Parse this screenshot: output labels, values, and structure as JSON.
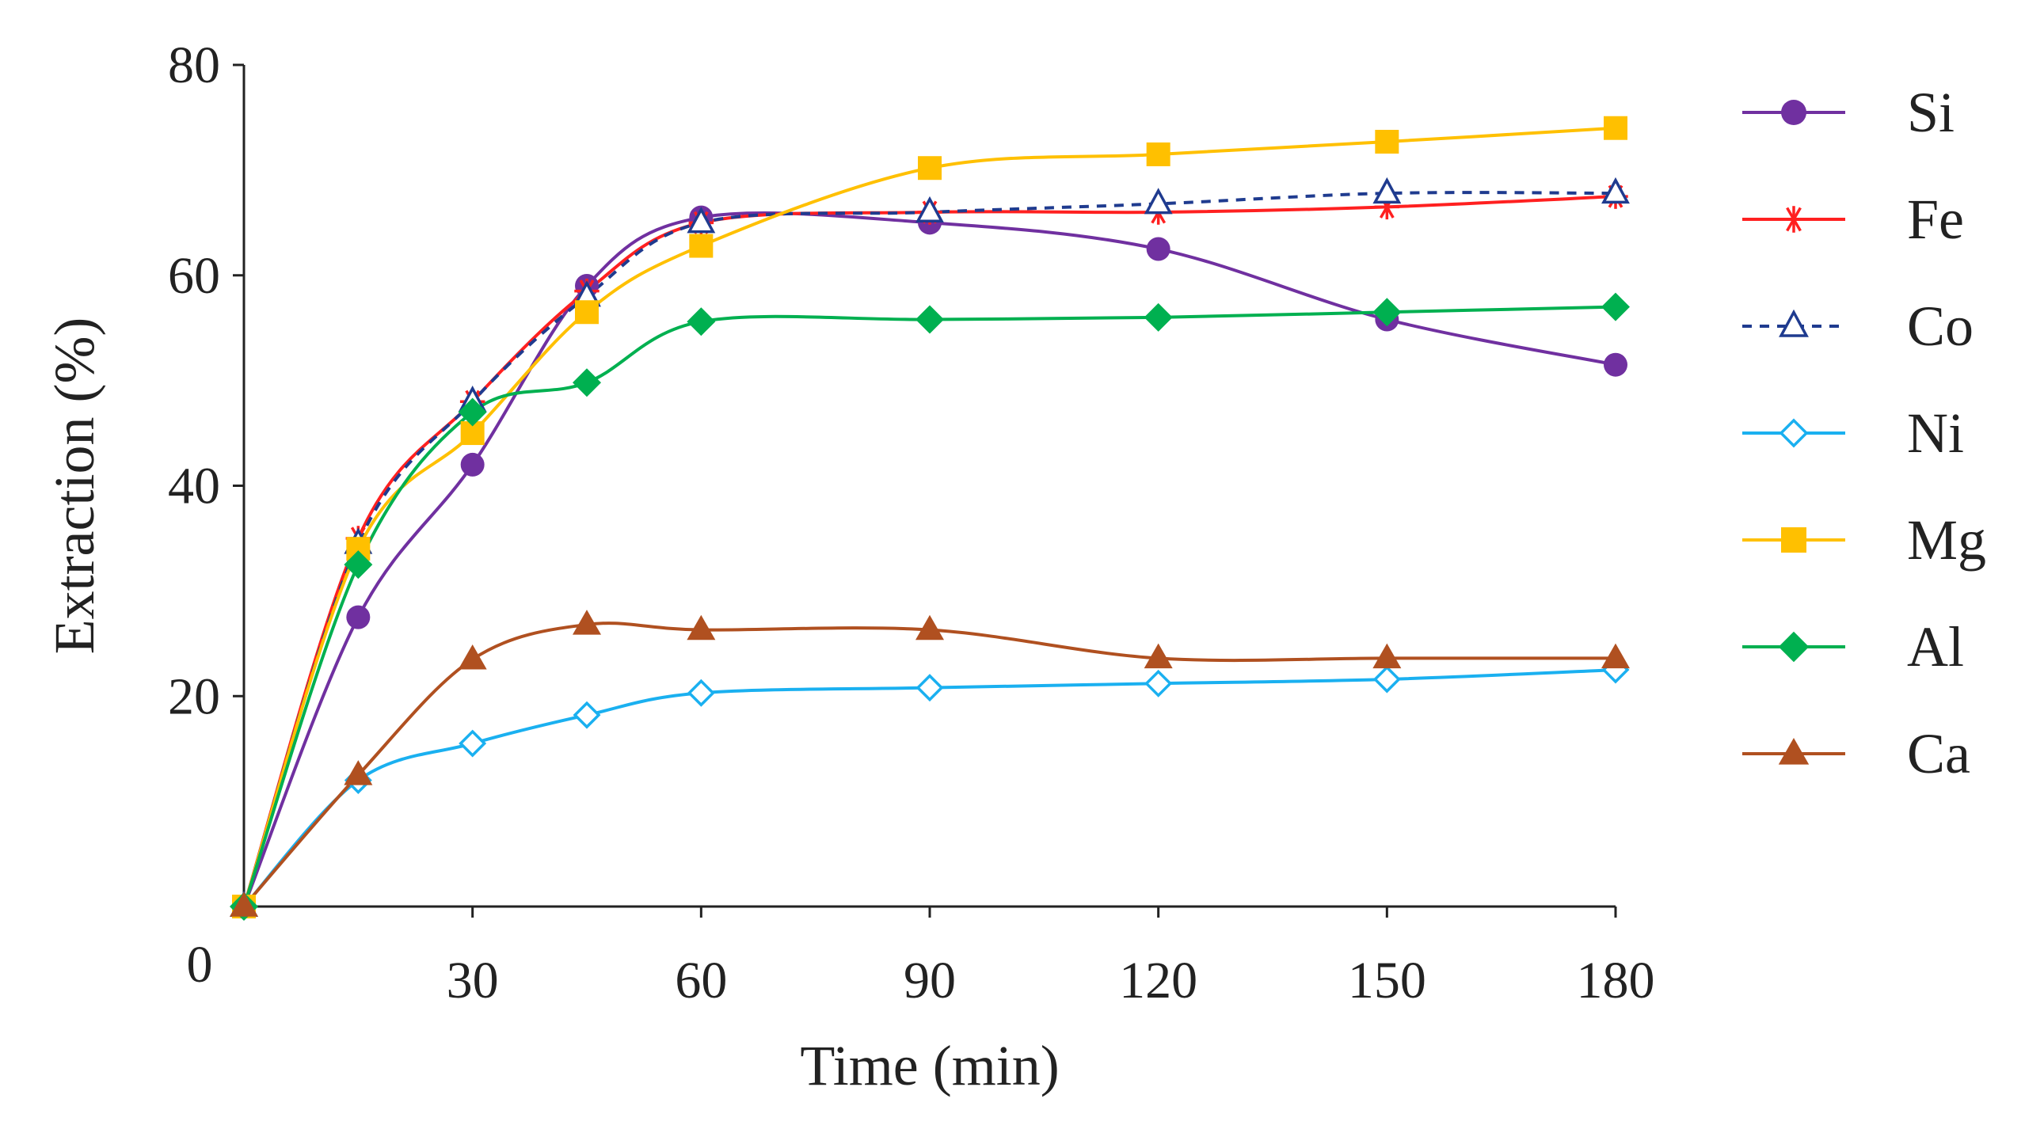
{
  "chart_data": {
    "type": "line",
    "title": "",
    "xlabel": "Time (min)",
    "ylabel": "Extraction (%)",
    "xlim": [
      0,
      180
    ],
    "ylim": [
      0,
      80
    ],
    "xticks": [
      30,
      60,
      90,
      120,
      150,
      180
    ],
    "yticks": [
      20,
      40,
      60,
      80
    ],
    "origin_label": "0",
    "legend_position": "right",
    "grid": false,
    "x": [
      0,
      15,
      30,
      45,
      60,
      90,
      120,
      150,
      180
    ],
    "series": [
      {
        "name": "Si",
        "color": "#7030a0",
        "marker": "circle",
        "dashed": false,
        "values": [
          0,
          27.5,
          42,
          59,
          65.5,
          65,
          62.5,
          55.8,
          51.5
        ]
      },
      {
        "name": "Fe",
        "color": "#ff2020",
        "marker": "star",
        "dashed": false,
        "values": [
          0,
          35,
          48,
          58.5,
          65,
          66,
          66,
          66.5,
          67.5
        ]
      },
      {
        "name": "Co",
        "color": "#1f3b8f",
        "marker": "triangle-open",
        "dashed": true,
        "values": [
          0,
          34.5,
          48,
          58,
          65,
          66,
          66.8,
          67.8,
          67.8
        ]
      },
      {
        "name": "Ni",
        "color": "#1ab0f0",
        "marker": "diamond-open",
        "dashed": false,
        "values": [
          0,
          12,
          15.5,
          18.2,
          20.3,
          20.8,
          21.2,
          21.6,
          22.5
        ]
      },
      {
        "name": "Mg",
        "color": "#ffc000",
        "marker": "square",
        "dashed": false,
        "values": [
          0,
          34,
          45,
          56.5,
          62.8,
          70.2,
          71.5,
          72.7,
          74
        ]
      },
      {
        "name": "Al",
        "color": "#00b050",
        "marker": "diamond",
        "dashed": false,
        "values": [
          0,
          32.5,
          47,
          49.8,
          55.6,
          55.8,
          56,
          56.5,
          57
        ]
      },
      {
        "name": "Ca",
        "color": "#b05020",
        "marker": "triangle",
        "dashed": false,
        "values": [
          0,
          12.5,
          23.5,
          26.8,
          26.3,
          26.3,
          23.6,
          23.6,
          23.6
        ]
      }
    ]
  }
}
